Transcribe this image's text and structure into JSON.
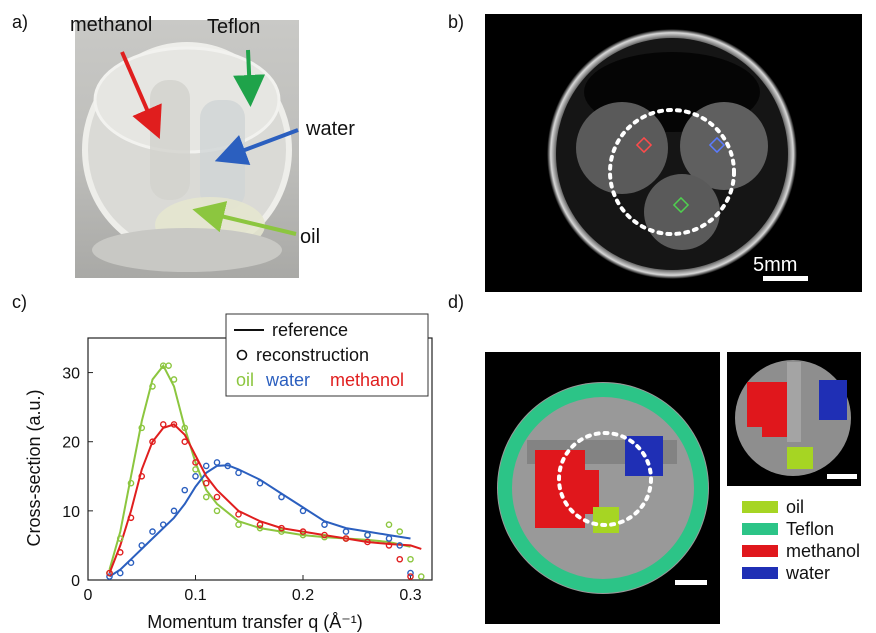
{
  "panels": {
    "a": {
      "label": "a)",
      "annotations": [
        "methanol",
        "Teflon",
        "water",
        "oil"
      ]
    },
    "b": {
      "label": "b)",
      "scale_bar": "5mm"
    },
    "c": {
      "label": "c)",
      "legend": {
        "reference": "reference",
        "reconstruction": "reconstruction",
        "oil": "oil",
        "water": "water",
        "methanol": "methanol"
      }
    },
    "d": {
      "label": "d)",
      "legend": [
        {
          "label": "oil",
          "color": "#a6d523"
        },
        {
          "label": "Teflon",
          "color": "#2cc487"
        },
        {
          "label": "methanol",
          "color": "#e0171c"
        },
        {
          "label": "water",
          "color": "#1f2fb5"
        }
      ]
    }
  },
  "colors": {
    "oil": "#8cc63f",
    "water": "#2b5fbf",
    "methanol": "#e01e1e",
    "teflon_arrow": "#1fa34a"
  },
  "chart_data": {
    "type": "line",
    "xlabel": "Momentum transfer q (Å⁻¹)",
    "ylabel": "Cross-section (a.u.)",
    "xlim": [
      0,
      0.32
    ],
    "ylim": [
      0,
      35
    ],
    "x_ticks": [
      0,
      0.1,
      0.2,
      0.3
    ],
    "x_tick_labels": [
      "0",
      "0.1",
      "0.2",
      "0.3"
    ],
    "y_ticks": [
      0,
      10,
      20,
      30
    ],
    "y_tick_labels": [
      "0",
      "10",
      "20",
      "30"
    ],
    "series": [
      {
        "name": "oil",
        "color": "#8cc63f",
        "reference": {
          "x": [
            0.02,
            0.03,
            0.04,
            0.05,
            0.06,
            0.07,
            0.08,
            0.09,
            0.1,
            0.11,
            0.12,
            0.14,
            0.16,
            0.18,
            0.2,
            0.22,
            0.24,
            0.26,
            0.28,
            0.3
          ],
          "y": [
            1.5,
            7,
            15,
            23,
            29,
            31,
            28,
            22,
            17,
            13,
            11,
            8.5,
            7.5,
            7,
            6.5,
            6.2,
            6,
            5.8,
            5.5,
            4.8
          ]
        },
        "reconstruction": {
          "x": [
            0.02,
            0.03,
            0.04,
            0.05,
            0.06,
            0.07,
            0.075,
            0.08,
            0.09,
            0.1,
            0.11,
            0.12,
            0.14,
            0.16,
            0.18,
            0.2,
            0.22,
            0.24,
            0.26,
            0.28,
            0.29,
            0.3,
            0.31
          ],
          "y": [
            1,
            6,
            14,
            22,
            28,
            31,
            31,
            29,
            22,
            16,
            12,
            10,
            8,
            7.5,
            7,
            6.5,
            6.2,
            6,
            6.5,
            8,
            7,
            3,
            0.5
          ]
        }
      },
      {
        "name": "water",
        "color": "#2b5fbf",
        "reference": {
          "x": [
            0.02,
            0.03,
            0.04,
            0.05,
            0.06,
            0.07,
            0.08,
            0.09,
            0.1,
            0.11,
            0.12,
            0.13,
            0.14,
            0.16,
            0.18,
            0.2,
            0.22,
            0.24,
            0.26,
            0.28,
            0.3
          ],
          "y": [
            0.5,
            1.5,
            3,
            4.5,
            6,
            7.5,
            9,
            11,
            13.5,
            15.5,
            16.5,
            16.6,
            16,
            14.5,
            12.5,
            10.5,
            8.5,
            7.5,
            7,
            6.5,
            6
          ]
        },
        "reconstruction": {
          "x": [
            0.02,
            0.03,
            0.04,
            0.05,
            0.06,
            0.07,
            0.08,
            0.09,
            0.1,
            0.11,
            0.12,
            0.13,
            0.14,
            0.16,
            0.18,
            0.2,
            0.22,
            0.24,
            0.26,
            0.28,
            0.29,
            0.3
          ],
          "y": [
            0.5,
            1,
            2.5,
            5,
            7,
            8,
            10,
            13,
            15,
            16.5,
            17,
            16.5,
            15.5,
            14,
            12,
            10,
            8,
            7,
            6.5,
            6,
            5,
            1
          ]
        }
      },
      {
        "name": "methanol",
        "color": "#e01e1e",
        "reference": {
          "x": [
            0.02,
            0.03,
            0.04,
            0.05,
            0.06,
            0.07,
            0.08,
            0.09,
            0.1,
            0.11,
            0.12,
            0.14,
            0.16,
            0.18,
            0.2,
            0.22,
            0.24,
            0.26,
            0.28,
            0.3,
            0.31
          ],
          "y": [
            1,
            5,
            10,
            16,
            20,
            22,
            22.5,
            21,
            18,
            15,
            13,
            10,
            8.5,
            7.5,
            7,
            6.5,
            6,
            5.5,
            5.2,
            5,
            4.5
          ]
        },
        "reconstruction": {
          "x": [
            0.02,
            0.03,
            0.04,
            0.05,
            0.06,
            0.07,
            0.08,
            0.09,
            0.1,
            0.11,
            0.12,
            0.14,
            0.16,
            0.18,
            0.2,
            0.22,
            0.24,
            0.26,
            0.28,
            0.29,
            0.3
          ],
          "y": [
            1,
            4,
            9,
            15,
            20,
            22.5,
            22.5,
            20,
            17,
            14,
            12,
            9.5,
            8,
            7.5,
            7,
            6.5,
            6,
            5.5,
            5,
            3,
            0.5
          ]
        }
      }
    ]
  }
}
